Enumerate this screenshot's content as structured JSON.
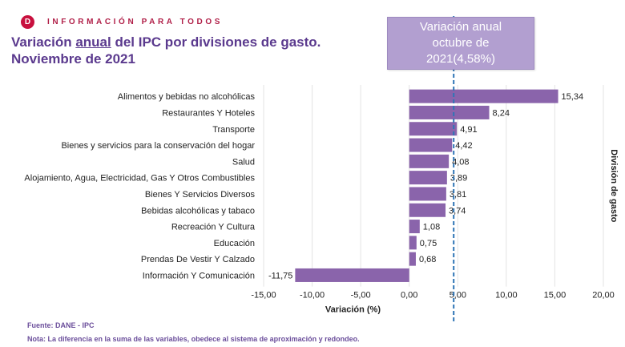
{
  "header": {
    "logo_glyph": "D",
    "tagline": "INFORMACIÓN PARA TODOS",
    "title_part1": "Variación ",
    "title_underlined": "anual",
    "title_part2": " del IPC por divisiones de gasto.",
    "title_line2": "Noviembre de 2021"
  },
  "callout": {
    "text": "Variación anual octubre de 2021(4,58%)"
  },
  "colors": {
    "bar": "#8a64ab",
    "title": "#5b3a8e",
    "callout_bg": "#b29fd0",
    "reference_line": "#2e75b6",
    "logo": "#c8103e"
  },
  "chart_data": {
    "type": "bar",
    "orientation": "horizontal",
    "categories": [
      "Alimentos y bebidas no alcohólicas",
      "Restaurantes Y Hoteles",
      "Transporte",
      "Bienes y servicios para la conservación del hogar",
      "Salud",
      "Alojamiento, Agua, Electricidad, Gas Y Otros Combustibles",
      "Bienes Y Servicios Diversos",
      "Bebidas alcohólicas y tabaco",
      "Recreación Y Cultura",
      "Educación",
      "Prendas De Vestir Y Calzado",
      "Información Y Comunicación"
    ],
    "values": [
      15.34,
      8.24,
      4.91,
      4.42,
      4.08,
      3.89,
      3.81,
      3.74,
      1.08,
      0.75,
      0.68,
      -11.75
    ],
    "data_labels": [
      "15,34",
      "8,24",
      "4,91",
      "4,42",
      "4,08",
      "3,89",
      "3,81",
      "3,74",
      "1,08",
      "0,75",
      "0,68",
      "-11,75"
    ],
    "xlim": [
      -15,
      20
    ],
    "x_ticks": [
      -15,
      -10,
      -5,
      0,
      5,
      10,
      15,
      20
    ],
    "x_tick_labels": [
      "-15,00",
      "-10,00",
      "-5,00",
      "0,00",
      "5,00",
      "10,00",
      "15,00",
      "20,00"
    ],
    "xlabel": "Variación (%)",
    "ylabel": "División de gasto",
    "reference_line": 4.58,
    "grid": "vertical"
  },
  "footer": {
    "source": "Fuente: DANE - IPC",
    "note": "Nota: La diferencia en la suma de las variables, obedece al sistema de aproximación y redondeo."
  }
}
